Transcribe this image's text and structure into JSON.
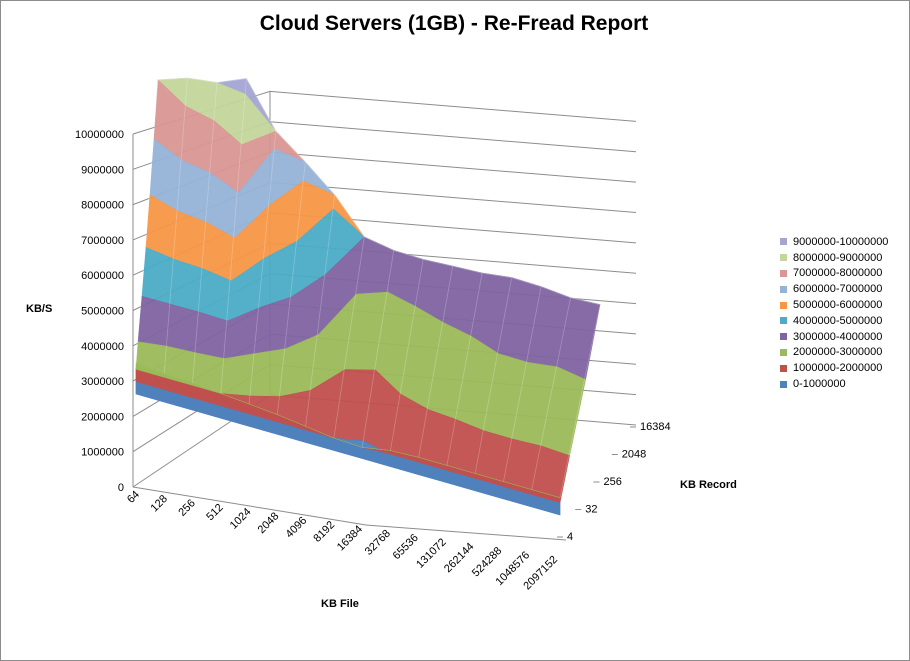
{
  "chart_data": {
    "type": "surface",
    "title": "Cloud Servers (1GB)  - Re-Fread Report",
    "ylabel": "KB/S",
    "xlabel": "KB File",
    "zlabel": "KB Record",
    "y_ticks": [
      "0",
      "1000000",
      "2000000",
      "3000000",
      "4000000",
      "5000000",
      "6000000",
      "7000000",
      "8000000",
      "9000000",
      "10000000"
    ],
    "x_categories": [
      "64",
      "128",
      "256",
      "512",
      "1024",
      "2048",
      "4096",
      "8192",
      "16384",
      "32768",
      "65536",
      "131072",
      "262144",
      "524288",
      "1048576",
      "2097152"
    ],
    "z_ticks": [
      "4",
      "32",
      "256",
      "2048",
      "16384"
    ],
    "ylim": [
      0,
      10000000
    ],
    "legend_position": "right",
    "legend": [
      {
        "label": "9000000-10000000",
        "color": "#a5a5d4"
      },
      {
        "label": "8000000-9000000",
        "color": "#c3d69b"
      },
      {
        "label": "7000000-8000000",
        "color": "#d99694"
      },
      {
        "label": "6000000-7000000",
        "color": "#95b3d7"
      },
      {
        "label": "5000000-6000000",
        "color": "#f79646"
      },
      {
        "label": "4000000-5000000",
        "color": "#4bacc6"
      },
      {
        "label": "3000000-4000000",
        "color": "#8064a2"
      },
      {
        "label": "2000000-3000000",
        "color": "#9bbb59"
      },
      {
        "label": "1000000-2000000",
        "color": "#c0504d"
      },
      {
        "label": "0-1000000",
        "color": "#4f81bd"
      }
    ],
    "front_profile": [
      2500000,
      2300000,
      2200000,
      2000000,
      1800000,
      1600000,
      1300000,
      1000000,
      900000,
      1300000,
      1400000,
      1400000,
      1400000,
      1400000,
      1400000,
      1400000
    ],
    "back_profile": [
      8000000,
      8500000,
      8700000,
      9300000,
      7300000,
      6300000,
      5200000,
      3700000,
      3500000,
      3500000,
      3600000,
      3700000,
      3900000,
      3900000,
      3800000,
      3900000
    ]
  }
}
